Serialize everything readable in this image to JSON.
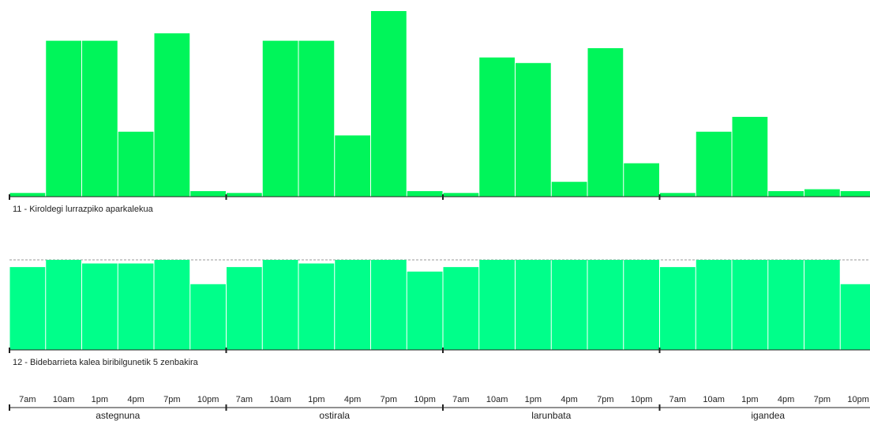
{
  "colors": {
    "series1": "#00f55a",
    "series2": "#00ff8a",
    "axis": "#222222",
    "reference": "#999999"
  },
  "chart_data": [
    {
      "type": "bar",
      "title": "11 - Kiroldegi lurrazpiko aparkalekua",
      "groups": [
        "astegnuna",
        "ostirala",
        "larunbata",
        "igandea"
      ],
      "categories": [
        "7am",
        "10am",
        "1pm",
        "4pm",
        "7pm",
        "10pm"
      ],
      "ylim": [
        0,
        100
      ],
      "grid": false,
      "series": [
        {
          "name": "astegnuna",
          "values": [
            2,
            84,
            84,
            35,
            88,
            3
          ]
        },
        {
          "name": "ostirala",
          "values": [
            2,
            84,
            84,
            33,
            100,
            3
          ]
        },
        {
          "name": "larunbata",
          "values": [
            2,
            75,
            72,
            8,
            80,
            18
          ]
        },
        {
          "name": "igandea",
          "values": [
            2,
            35,
            43,
            3,
            4,
            3
          ]
        }
      ]
    },
    {
      "type": "bar",
      "title": "12 - Bidebarrieta kalea biribilgunetik 5 zenbakira",
      "groups": [
        "astegnuna",
        "ostirala",
        "larunbata",
        "igandea"
      ],
      "categories": [
        "7am",
        "10am",
        "1pm",
        "4pm",
        "7pm",
        "10pm"
      ],
      "ylim": [
        0,
        100
      ],
      "reference_line": 100,
      "grid": false,
      "series": [
        {
          "name": "astegnuna",
          "values": [
            92,
            100,
            96,
            96,
            100,
            73
          ]
        },
        {
          "name": "ostirala",
          "values": [
            92,
            100,
            96,
            100,
            100,
            87
          ]
        },
        {
          "name": "larunbata",
          "values": [
            92,
            100,
            100,
            100,
            100,
            100
          ]
        },
        {
          "name": "igandea",
          "values": [
            92,
            100,
            100,
            100,
            100,
            73
          ]
        }
      ]
    }
  ],
  "axis": {
    "time_labels": [
      "7am",
      "10am",
      "1pm",
      "4pm",
      "7pm",
      "10pm"
    ],
    "day_labels": [
      "astegnuna",
      "ostirala",
      "larunbata",
      "igandea"
    ]
  }
}
